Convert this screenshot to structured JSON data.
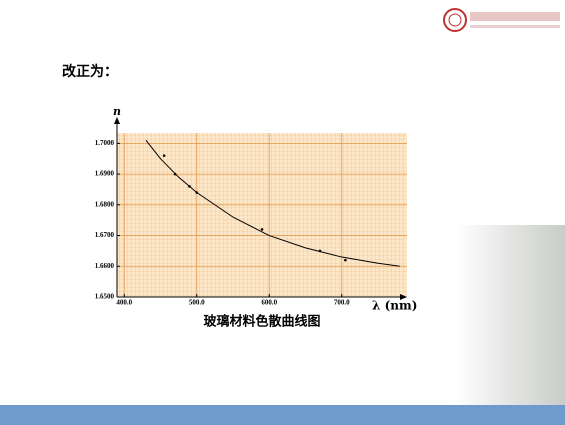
{
  "slide": {
    "heading": "改正为："
  },
  "chart_data": {
    "type": "scatter",
    "caption": "玻璃材料色散曲线图",
    "y_label": "n",
    "x_label": "λ (nm)",
    "points": {
      "x": [
        455,
        470,
        490,
        500,
        590,
        670,
        705
      ],
      "y": [
        1.696,
        1.69,
        1.686,
        1.684,
        1.672,
        1.665,
        1.662
      ]
    },
    "curve": {
      "x": [
        430,
        450,
        475,
        500,
        550,
        600,
        650,
        700,
        750,
        780
      ],
      "y": [
        1.701,
        1.695,
        1.689,
        1.684,
        1.676,
        1.67,
        1.666,
        1.663,
        1.661,
        1.66
      ]
    },
    "color": "#000000",
    "xlim": [
      390,
      790
    ],
    "ylim": [
      1.65,
      1.705
    ],
    "xticks": [
      {
        "value": 400,
        "label": "400.0"
      },
      {
        "value": 500,
        "label": "500.0"
      },
      {
        "value": 600,
        "label": "600.0"
      },
      {
        "value": 700,
        "label": "700.0"
      }
    ],
    "yticks": [
      {
        "value": 1.65,
        "label": "1.6500"
      },
      {
        "value": 1.66,
        "label": "1.6600"
      },
      {
        "value": 1.67,
        "label": "1.6700"
      },
      {
        "value": 1.68,
        "label": "1.6800"
      },
      {
        "value": 1.69,
        "label": "1.6900"
      },
      {
        "value": 1.7,
        "label": "1.7000"
      }
    ],
    "grid": true
  }
}
